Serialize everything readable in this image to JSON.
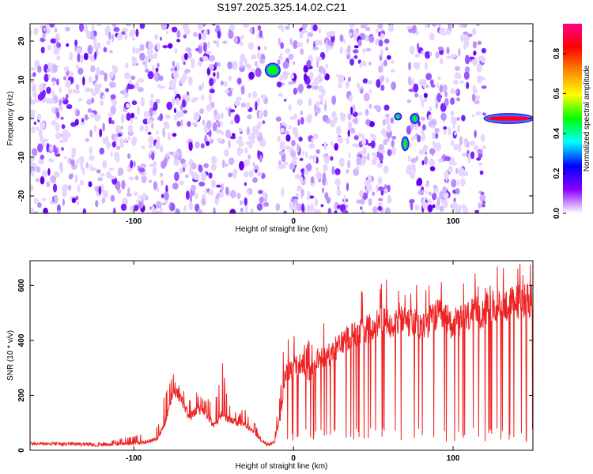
{
  "figure_title": "S197.2025.325.14.02.C21",
  "chart_data": [
    {
      "type": "heatmap",
      "xlabel": "Height of straight line (km)",
      "ylabel": "Frequency (Hz)",
      "xlim": [
        -165,
        150
      ],
      "ylim": [
        -24.5,
        24.5
      ],
      "xticks": [
        -100,
        0,
        100
      ],
      "yticks": [
        20,
        10,
        0,
        -10,
        -20
      ],
      "colorbar": {
        "label": "Normalized spectral amplitude",
        "range": [
          0,
          0.95
        ],
        "ticks": [
          0,
          0.2,
          0.4,
          0.6,
          0.8
        ],
        "tick_labels": [
          "0.0",
          "0.2",
          "0.4",
          "0.6",
          "0.8"
        ],
        "colormap": [
          "#ffffff",
          "#8800ff",
          "#0000ff",
          "#00ffff",
          "#00ff00",
          "#ffff00",
          "#ff8800",
          "#ff0000",
          "#ff0088"
        ]
      },
      "gaps_x": [
        [
          -17,
          -10
        ],
        [
          63,
          72
        ],
        [
          120,
          150
        ]
      ],
      "features": [
        {
          "x": [
            -17,
            -9
          ],
          "y": [
            11,
            14
          ],
          "amplitude": 0.45
        },
        {
          "x": [
            64,
            67
          ],
          "y": [
            0,
            1
          ],
          "amplitude": 0.45
        },
        {
          "x": [
            69,
            71
          ],
          "y": [
            -8,
            -5
          ],
          "amplitude": 0.45
        },
        {
          "x": [
            74,
            78
          ],
          "y": [
            -1,
            1
          ],
          "amplitude": 0.45
        },
        {
          "x": [
            120,
            150
          ],
          "y": [
            -1,
            1
          ],
          "amplitude": 0.9
        }
      ]
    },
    {
      "type": "line",
      "xlabel": "Height of straight line (km)",
      "ylabel": "SNR (10 * v/v)",
      "xlim": [
        -165,
        150
      ],
      "ylim": [
        0,
        690
      ],
      "xticks": [
        -100,
        0,
        100
      ],
      "yticks": [
        0,
        200,
        400,
        600
      ],
      "line_color": "#ee2222",
      "series": [
        {
          "x": [
            -165,
            -120,
            -95,
            -85,
            -80,
            -75,
            -70,
            -65,
            -60,
            -55,
            -50,
            -45,
            -40,
            -35,
            -30,
            -25,
            -20,
            -15,
            -12,
            -8,
            -5,
            0,
            5,
            10,
            15,
            20,
            25,
            30,
            35,
            40,
            45,
            50,
            55,
            60,
            65,
            70,
            75,
            80,
            85,
            90,
            95,
            100,
            105,
            110,
            115,
            120,
            125,
            130,
            135,
            140,
            145,
            150
          ],
          "values": [
            25,
            20,
            28,
            40,
            110,
            230,
            180,
            120,
            150,
            140,
            90,
            130,
            110,
            100,
            90,
            70,
            30,
            20,
            30,
            130,
            280,
            300,
            320,
            280,
            330,
            340,
            360,
            390,
            420,
            430,
            440,
            450,
            470,
            460,
            480,
            470,
            460,
            450,
            470,
            490,
            480,
            460,
            470,
            490,
            500,
            510,
            520,
            530,
            530,
            540,
            550,
            550
          ],
          "spike_ceiling": [
            25,
            30,
            60,
            100,
            240,
            280,
            250,
            210,
            220,
            200,
            170,
            340,
            180,
            130,
            160,
            120,
            40,
            30,
            50,
            250,
            510,
            420,
            440,
            400,
            460,
            490,
            560,
            640,
            650,
            620,
            640,
            630,
            640,
            650,
            630,
            600,
            640,
            630,
            620,
            610,
            620,
            600,
            650,
            660,
            640,
            630,
            660,
            680,
            670,
            680,
            690,
            690
          ]
        }
      ]
    }
  ]
}
